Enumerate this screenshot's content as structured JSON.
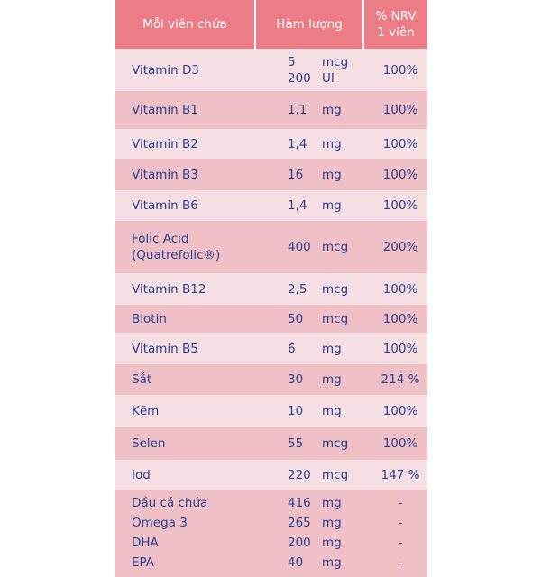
{
  "colors": {
    "header": "#ec7c86",
    "row_light": "#f5dfe3",
    "row_dark": "#efc1c7",
    "text": "#2b3f8f"
  },
  "header": {
    "col1": "Mỗi viên chứa",
    "col2": "Hàm lượng",
    "col3": "% NRV\n1 viên"
  },
  "rows": [
    {
      "name": "Vitamin   D3",
      "amount": "5\n200",
      "unit": "mcg\nUI",
      "nrv": "100%"
    },
    {
      "name": "Vitamin   B1",
      "amount": "1,1",
      "unit": "mg",
      "nrv": "100%"
    },
    {
      "name": "Vitamin   B2",
      "amount": "1,4",
      "unit": "mg",
      "nrv": "100%"
    },
    {
      "name": "Vitamin   B3",
      "amount": "16",
      "unit": "mg",
      "nrv": "100%"
    },
    {
      "name": "Vitamin   B6",
      "amount": "1,4",
      "unit": "mg",
      "nrv": "100%"
    },
    {
      "name": "Folic Acid\n(Quatrefolic®)",
      "amount": "400",
      "unit": "mcg",
      "nrv": "200%"
    },
    {
      "name": "Vitamin   B12",
      "amount": "2,5",
      "unit": "mcg",
      "nrv": "100%"
    },
    {
      "name": "Biotin",
      "amount": "50",
      "unit": "mcg",
      "nrv": "100%"
    },
    {
      "name": "Vitamin   B5",
      "amount": "6",
      "unit": "mg",
      "nrv": "100%"
    },
    {
      "name": "Sắt",
      "amount": "30",
      "unit": "mg",
      "nrv": "214 %"
    },
    {
      "name": "Kẽm",
      "amount": "10",
      "unit": "mg",
      "nrv": "100%"
    },
    {
      "name": "Selen",
      "amount": "55",
      "unit": "mcg",
      "nrv": "100%"
    },
    {
      "name": "Iod",
      "amount": "220",
      "unit": "mcg",
      "nrv": "147 %"
    }
  ],
  "omega_rows": [
    {
      "name": "Dầu cá chứa",
      "amount": "416",
      "unit": "mg",
      "nrv": "-"
    },
    {
      "name": "Omega 3",
      "amount": "265",
      "unit": "mg",
      "nrv": "-"
    },
    {
      "name": "DHA",
      "amount": "200",
      "unit": "mg",
      "nrv": "-"
    },
    {
      "name": "EPA",
      "amount": "40",
      "unit": "mg",
      "nrv": "-"
    }
  ]
}
